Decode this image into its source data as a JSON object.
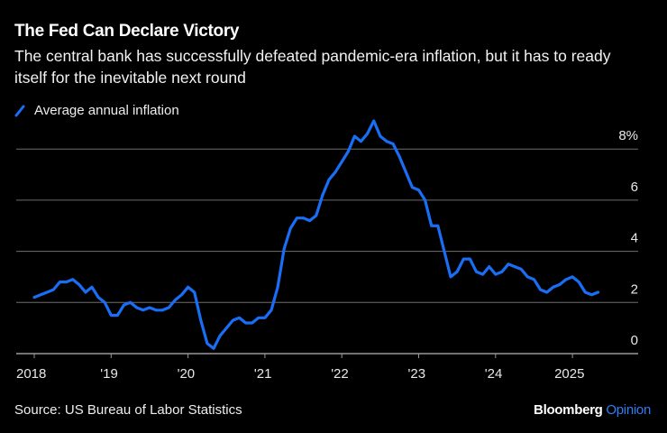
{
  "header": {
    "title": "The Fed Can Declare Victory",
    "subtitle": "The central bank has successfully defeated pandemic-era inflation, but it has to ready itself for the inevitable next round"
  },
  "legend": {
    "icon": "line-swatch-icon",
    "label": "Average annual inflation"
  },
  "footer": {
    "source": "Source: US Bureau of Labor Statistics",
    "brand": "Bloomberg",
    "brand_suffix": "Opinion"
  },
  "colors": {
    "line": "#1a6ef5",
    "grid": "#6e6e6e",
    "axis": "#9a9a9a",
    "text": "#ffffff",
    "background": "#000000",
    "brand_accent": "#2f7df6"
  },
  "chart_data": {
    "type": "line",
    "title": "The Fed Can Declare Victory",
    "xlabel": "",
    "ylabel": "",
    "y_unit": "%",
    "ylim": [
      0,
      9.2
    ],
    "yticks": [
      0,
      2,
      4,
      6,
      8
    ],
    "ytick_labels": [
      "0",
      "2",
      "4",
      "6",
      "8%"
    ],
    "xticks": [
      "2018",
      "'19",
      "'20",
      "'21",
      "'22",
      "'23",
      "'24",
      "'25"
    ],
    "xtick_labels": [
      "2018",
      "'19",
      "'20",
      "'21",
      "'22",
      "'23",
      "'24",
      "2025"
    ],
    "x_start": "2018-01",
    "x_end": "2025-05",
    "frequency": "monthly",
    "grid": true,
    "legend_position": "top-left",
    "series": [
      {
        "name": "Average annual inflation",
        "values": [
          2.2,
          2.3,
          2.4,
          2.5,
          2.8,
          2.8,
          2.9,
          2.7,
          2.4,
          2.6,
          2.2,
          2.0,
          1.5,
          1.5,
          1.9,
          2.0,
          1.8,
          1.7,
          1.8,
          1.7,
          1.7,
          1.8,
          2.1,
          2.3,
          2.6,
          2.4,
          1.3,
          0.4,
          0.2,
          0.7,
          1.0,
          1.3,
          1.4,
          1.2,
          1.2,
          1.4,
          1.4,
          1.7,
          2.6,
          4.1,
          4.9,
          5.3,
          5.3,
          5.2,
          5.4,
          6.2,
          6.8,
          7.1,
          7.5,
          7.9,
          8.5,
          8.3,
          8.6,
          9.1,
          8.5,
          8.3,
          8.2,
          7.7,
          7.1,
          6.5,
          6.4,
          6.0,
          5.0,
          5.0,
          4.0,
          3.0,
          3.2,
          3.7,
          3.7,
          3.2,
          3.1,
          3.4,
          3.1,
          3.2,
          3.5,
          3.4,
          3.3,
          3.0,
          2.9,
          2.5,
          2.4,
          2.6,
          2.7,
          2.9,
          3.0,
          2.8,
          2.4,
          2.3,
          2.4
        ]
      }
    ]
  }
}
